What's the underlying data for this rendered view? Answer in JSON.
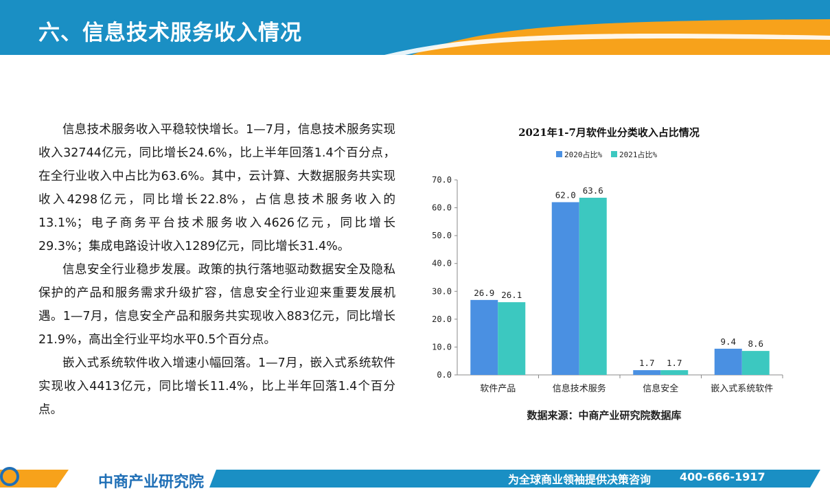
{
  "header": {
    "title": "六、信息技术服务收入情况"
  },
  "body": {
    "paragraphs": [
      "信息技术服务收入平稳较快增长。1—7月，信息技术服务实现收入32744亿元，同比增长24.6%，比上半年回落1.4个百分点，在全行业收入中占比为63.6%。其中，云计算、大数据服务共实现收入4298亿元，同比增长22.8%，占信息技术服务收入的13.1%；电子商务平台技术服务收入4626亿元，同比增长29.3%；集成电路设计收入1289亿元，同比增长31.4%。",
      "信息安全行业稳步发展。政策的执行落地驱动数据安全及隐私保护的产品和服务需求升级扩容，信息安全行业迎来重要发展机遇。1—7月，信息安全产品和服务共实现收入883亿元，同比增长21.9%，高出全行业平均水平0.5个百分点。",
      "嵌入式系统软件收入增速小幅回落。1—7月，嵌入式系统软件实现收入4413亿元，同比增长11.4%，比上半年回落1.4个百分点。"
    ]
  },
  "chart_data": {
    "type": "bar",
    "title": "2021年1-7月软件业分类收入占比情况",
    "categories": [
      "软件产品",
      "信息技术服务",
      "信息安全",
      "嵌入式系统软件"
    ],
    "series": [
      {
        "name": "2020占比%",
        "values": [
          26.9,
          62.0,
          1.7,
          9.4
        ],
        "labels": [
          "26.9",
          "62.0",
          "1.7",
          "9.4"
        ],
        "color": "#4a90e2"
      },
      {
        "name": "2021占比%",
        "values": [
          26.1,
          63.6,
          1.7,
          8.6
        ],
        "labels": [
          "26.1",
          "63.6",
          "1.7",
          "8.6"
        ],
        "color": "#3cc8c0"
      }
    ],
    "ylim": [
      0,
      70
    ],
    "yticks": [
      "0.0",
      "10.0",
      "20.0",
      "30.0",
      "40.0",
      "50.0",
      "60.0",
      "70.0"
    ],
    "grid": false,
    "legend": "top-center",
    "source": "数据来源：中商产业研究院数据库"
  },
  "footer": {
    "brand": "中商产业研究院",
    "slogan": "为全球商业领袖提供决策咨询",
    "phone": "400-666-1917"
  },
  "colors": {
    "header_blue": "#1a8fc4",
    "header_orange": "#f7a21b",
    "footer_blue": "#1a8fc4",
    "brand_blue": "#1f6fb6"
  }
}
